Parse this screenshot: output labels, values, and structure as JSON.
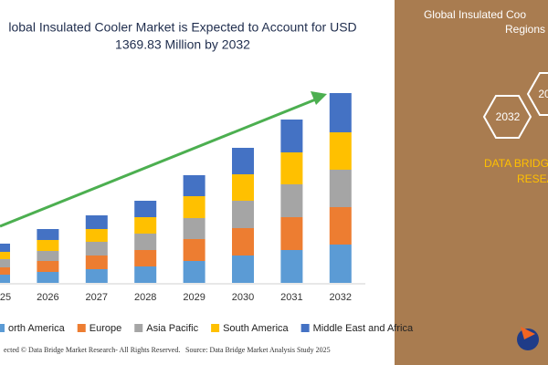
{
  "chart_data": {
    "type": "bar",
    "stacked": true,
    "title": "lobal Insulated Cooler Market is Expected to Account for USD",
    "subtitle": "1369.83 Million by 2032",
    "categories": [
      "25",
      "2026",
      "2027",
      "2028",
      "2029",
      "2030",
      "2031",
      "2032"
    ],
    "series": [
      {
        "name": "orth America",
        "color": "#5b9bd5",
        "values": [
          9,
          12,
          15,
          18,
          24,
          30,
          36,
          42
        ]
      },
      {
        "name": "Europe",
        "color": "#ed7d31",
        "values": [
          8,
          12,
          15,
          18,
          24,
          30,
          36,
          41
        ]
      },
      {
        "name": "Asia Pacific",
        "color": "#a5a5a5",
        "values": [
          9,
          11,
          15,
          18,
          23,
          30,
          36,
          41
        ]
      },
      {
        "name": "South America",
        "color": "#ffc000",
        "values": [
          8,
          12,
          14,
          18,
          24,
          29,
          35,
          41
        ]
      },
      {
        "name": "Middle East and Africa",
        "color": "#4472c4",
        "values": [
          9,
          12,
          15,
          18,
          23,
          29,
          36,
          43
        ]
      }
    ]
  },
  "side_panel": {
    "title_line1": "Global Insulated Coo",
    "title_line2": "Regions",
    "hex1": "2032",
    "hex2": "20",
    "brand_line1": "DATA BRIDG",
    "brand_line2": "RESEA"
  },
  "footer": {
    "copyright": "ected © Data Bridge Market Research- All Rights Reserved.",
    "source": "Source: Data Bridge Market Analysis Study 2025"
  }
}
